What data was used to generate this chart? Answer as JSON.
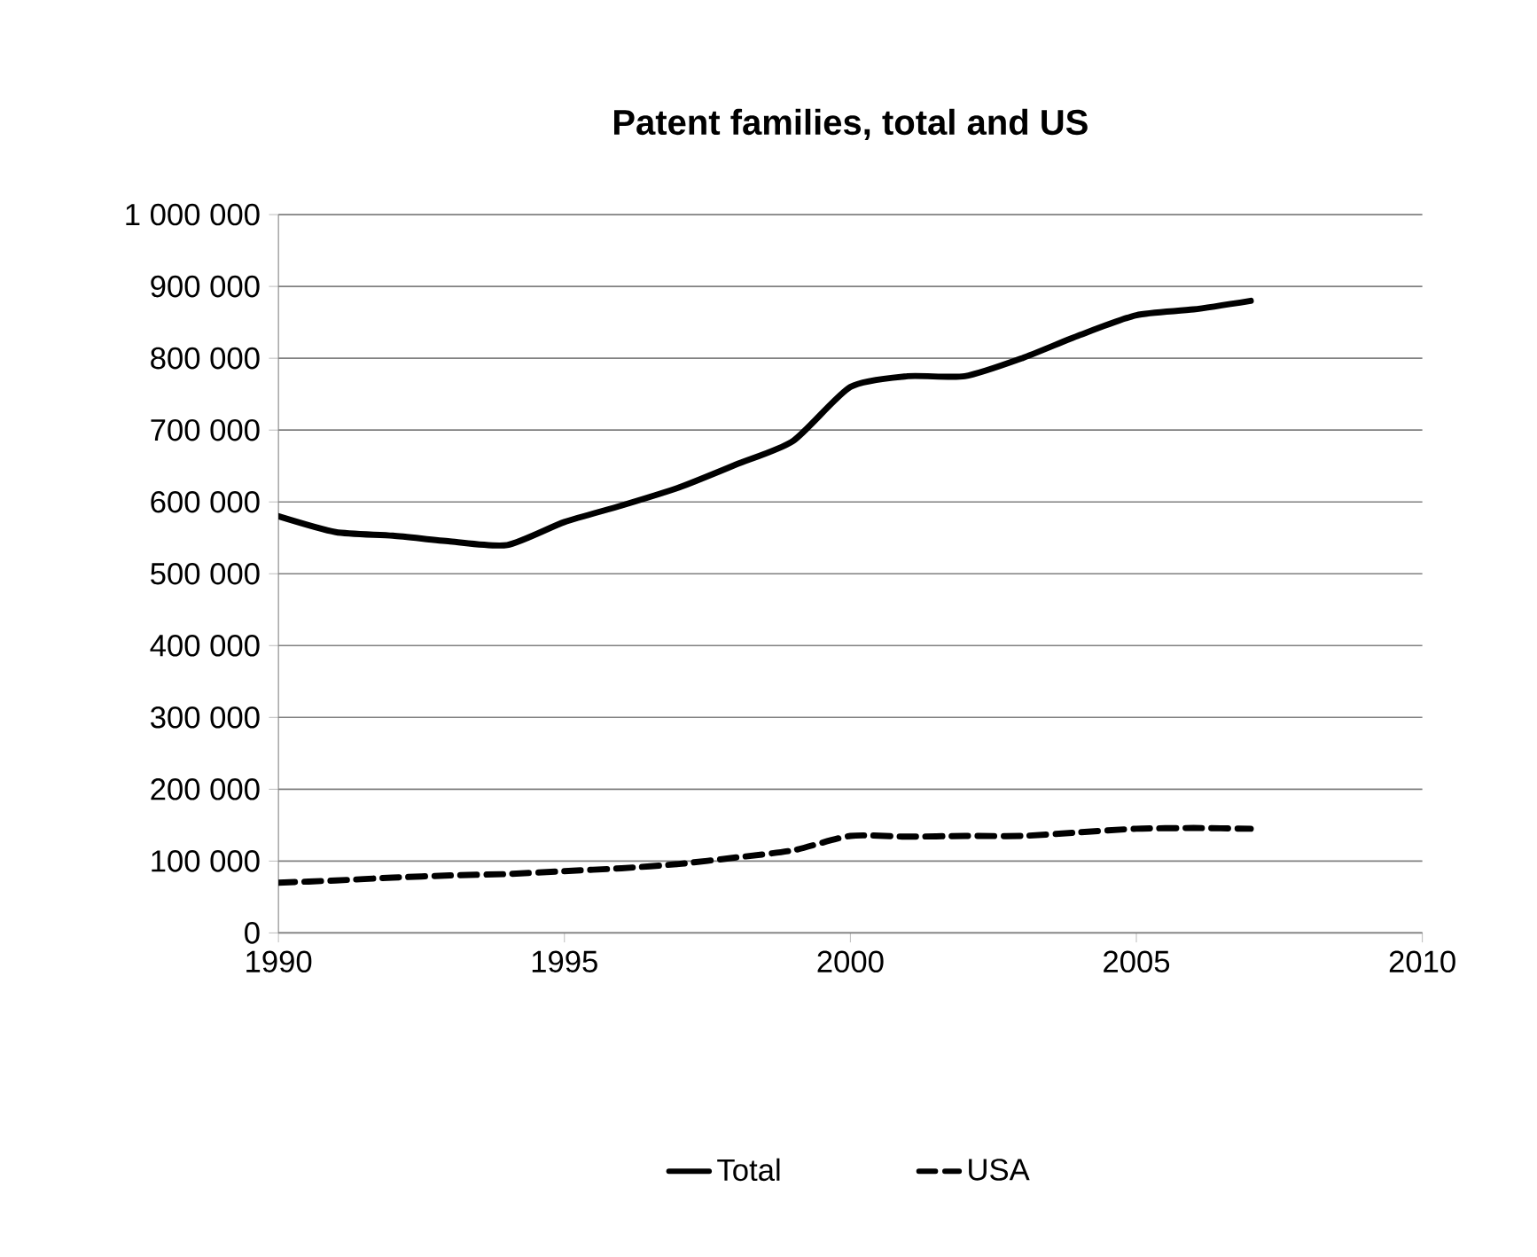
{
  "chart_data": {
    "type": "line",
    "title": "Patent families, total and US",
    "x": [
      1990,
      1991,
      1992,
      1993,
      1994,
      1995,
      1996,
      1997,
      1998,
      1999,
      2000,
      2001,
      2002,
      2003,
      2004,
      2005,
      2006,
      2007
    ],
    "series": [
      {
        "name": "Total",
        "color": "#000000",
        "line_style": "solid",
        "values": [
          580000,
          558000,
          553000,
          545000,
          540000,
          572000,
          595000,
          620000,
          652000,
          685000,
          760000,
          775000,
          775000,
          800000,
          832000,
          860000,
          868000,
          880000
        ]
      },
      {
        "name": "USA",
        "color": "#000000",
        "line_style": "dashed",
        "values": [
          70000,
          73000,
          77000,
          80000,
          82000,
          86000,
          90000,
          96000,
          105000,
          115000,
          135000,
          134000,
          135000,
          135000,
          140000,
          145000,
          146000,
          145000
        ]
      }
    ],
    "xlim": [
      1990,
      2010
    ],
    "xticks": [
      1990,
      1995,
      2000,
      2005,
      2010
    ],
    "ylim": [
      0,
      1000000
    ],
    "yticks": [
      0,
      {
        "value": 100000,
        "label": "100 000"
      },
      {
        "value": 200000,
        "label": "200 000"
      },
      {
        "value": 300000,
        "label": "300 000"
      },
      {
        "value": 400000,
        "label": "400 000"
      },
      {
        "value": 500000,
        "label": "500 000"
      },
      {
        "value": 600000,
        "label": "600 000"
      },
      {
        "value": 700000,
        "label": "700 000"
      },
      {
        "value": 800000,
        "label": "800 000"
      },
      {
        "value": 900000,
        "label": "900 000"
      },
      {
        "value": 1000000,
        "label": "1 000 000"
      }
    ],
    "grid": "y",
    "legend": "bottom",
    "marker": "none"
  }
}
